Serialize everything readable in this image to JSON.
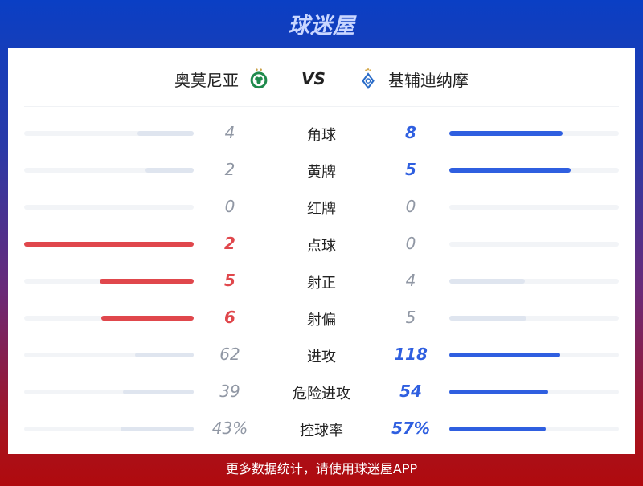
{
  "brand": "球迷屋",
  "match": {
    "home": "奥莫尼亚",
    "vs": "VS",
    "away": "基辅迪纳摩",
    "home_crest": "omonia-crest-icon",
    "away_crest": "dynamo-kyiv-crest-icon"
  },
  "colors": {
    "home_accent": "#e0474c",
    "away_accent": "#2f5fe0",
    "neutral_fill": "#dfe5ef",
    "neutral_text": "#9097a4"
  },
  "stats": [
    {
      "label": "角球",
      "home": "4",
      "away": "8"
    },
    {
      "label": "黄牌",
      "home": "2",
      "away": "5"
    },
    {
      "label": "红牌",
      "home": "0",
      "away": "0"
    },
    {
      "label": "点球",
      "home": "2",
      "away": "0"
    },
    {
      "label": "射正",
      "home": "5",
      "away": "4"
    },
    {
      "label": "射偏",
      "home": "6",
      "away": "5"
    },
    {
      "label": "进攻",
      "home": "62",
      "away": "118"
    },
    {
      "label": "危险进攻",
      "home": "39",
      "away": "54"
    },
    {
      "label": "控球率",
      "home": "43%",
      "away": "57%"
    }
  ],
  "footer": "更多数据统计，请使用球迷屋APP"
}
